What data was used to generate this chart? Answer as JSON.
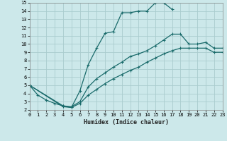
{
  "xlabel": "Humidex (Indice chaleur)",
  "xlim": [
    0,
    23
  ],
  "ylim": [
    2,
    15
  ],
  "xticks": [
    0,
    1,
    2,
    3,
    4,
    5,
    6,
    7,
    8,
    9,
    10,
    11,
    12,
    13,
    14,
    15,
    16,
    17,
    18,
    19,
    20,
    21,
    22,
    23
  ],
  "yticks": [
    2,
    3,
    4,
    5,
    6,
    7,
    8,
    9,
    10,
    11,
    12,
    13,
    14,
    15
  ],
  "bg_color": "#cce8ea",
  "grid_color": "#aaccce",
  "line_color": "#1a6b6b",
  "curve1_x": [
    0,
    1,
    2,
    3,
    4,
    5,
    6,
    7,
    8,
    9,
    10,
    11,
    12,
    13,
    14,
    15,
    16,
    17
  ],
  "curve1_y": [
    5.0,
    3.8,
    3.2,
    2.8,
    2.5,
    2.3,
    4.3,
    7.5,
    9.5,
    11.3,
    11.5,
    13.8,
    13.8,
    14.0,
    14.0,
    15.0,
    15.0,
    14.2
  ],
  "curve2_x": [
    0,
    4,
    5,
    6,
    7,
    8,
    9,
    10,
    11,
    12,
    13,
    14,
    15,
    16,
    17,
    18,
    19,
    20,
    21,
    22,
    23
  ],
  "curve2_y": [
    5.0,
    2.5,
    2.4,
    3.0,
    4.8,
    5.8,
    6.5,
    7.2,
    7.8,
    8.5,
    8.8,
    9.2,
    9.8,
    10.5,
    11.2,
    11.2,
    10.0,
    10.0,
    10.2,
    9.5,
    9.5
  ],
  "curve3_x": [
    0,
    4,
    5,
    6,
    7,
    8,
    9,
    10,
    11,
    12,
    13,
    14,
    15,
    16,
    17,
    18,
    19,
    20,
    21,
    22,
    23
  ],
  "curve3_y": [
    5.0,
    2.4,
    2.3,
    2.8,
    3.8,
    4.5,
    5.2,
    5.8,
    6.3,
    6.8,
    7.2,
    7.8,
    8.3,
    8.8,
    9.2,
    9.5,
    9.5,
    9.5,
    9.5,
    9.0,
    9.0
  ]
}
